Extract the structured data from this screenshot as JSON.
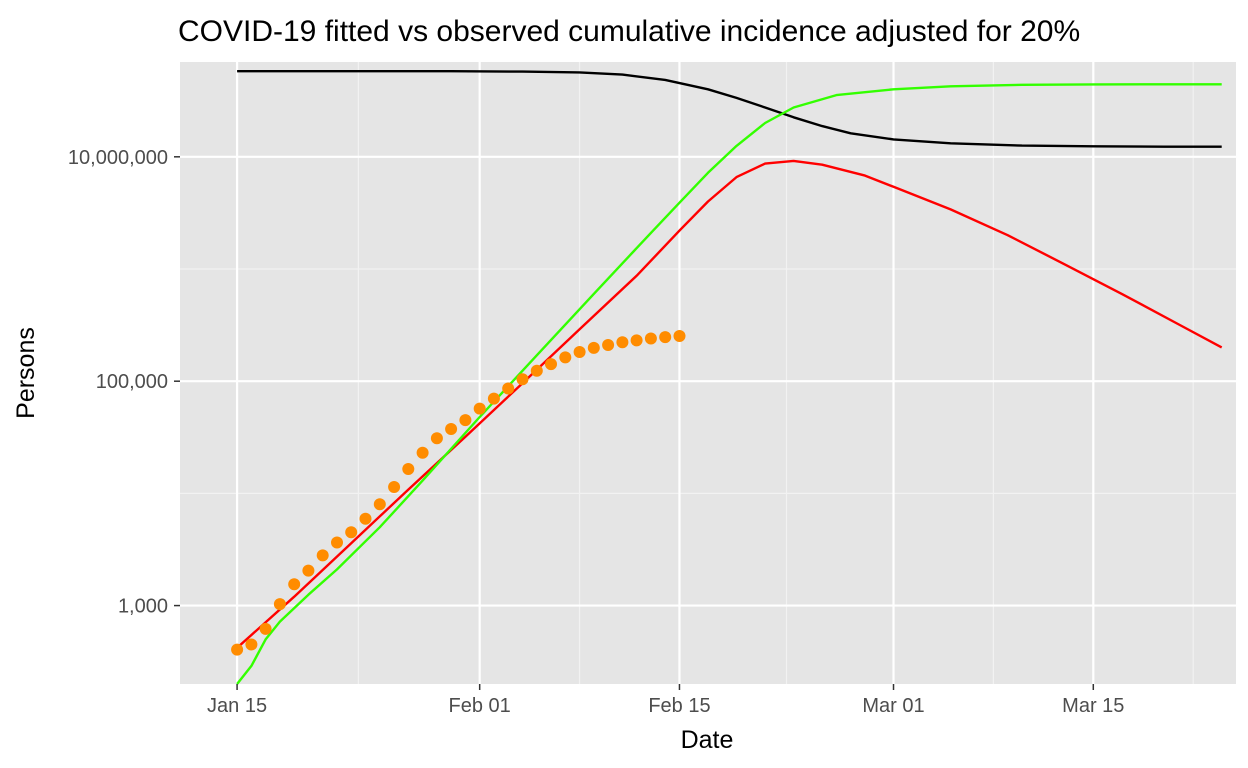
{
  "chart_data": {
    "type": "line",
    "title": "COVID-19 fitted vs observed cumulative incidence adjusted for 20%",
    "xlabel": "Date",
    "ylabel": "Persons",
    "x_scale": "date",
    "y_scale": "log10",
    "xlim": [
      "2020-01-11",
      "2020-03-25"
    ],
    "ylim": [
      200,
      70000000
    ],
    "x_ticks": [
      {
        "date": "2020-01-15",
        "label": "Jan 15"
      },
      {
        "date": "2020-02-01",
        "label": "Feb 01"
      },
      {
        "date": "2020-02-15",
        "label": "Feb 15"
      },
      {
        "date": "2020-03-01",
        "label": "Mar 01"
      },
      {
        "date": "2020-03-15",
        "label": "Mar 15"
      }
    ],
    "y_ticks": [
      {
        "value": 1000,
        "label": "1,000"
      },
      {
        "value": 100000,
        "label": "100,000"
      },
      {
        "value": 10000000,
        "label": "10,000,000"
      }
    ],
    "grid": true,
    "background": "#e5e5e5",
    "series": [
      {
        "color": "#000000",
        "kind": "line",
        "x": [
          "2020-01-15",
          "2020-01-20",
          "2020-01-25",
          "2020-01-30",
          "2020-02-04",
          "2020-02-08",
          "2020-02-11",
          "2020-02-14",
          "2020-02-17",
          "2020-02-19",
          "2020-02-21",
          "2020-02-23",
          "2020-02-25",
          "2020-02-27",
          "2020-03-01",
          "2020-03-05",
          "2020-03-10",
          "2020-03-15",
          "2020-03-20",
          "2020-03-24"
        ],
        "y": [
          58000000,
          58000000,
          58000000,
          57900000,
          57500000,
          56500000,
          54000000,
          48500000,
          40000000,
          33500000,
          27500000,
          22500000,
          18800000,
          16200000,
          14300000,
          13200000,
          12600000,
          12400000,
          12300000,
          12300000
        ]
      },
      {
        "color": "#ff0000",
        "kind": "line",
        "x": [
          "2020-01-15",
          "2020-01-19",
          "2020-01-23",
          "2020-01-27",
          "2020-01-31",
          "2020-02-04",
          "2020-02-08",
          "2020-02-12",
          "2020-02-15",
          "2020-02-17",
          "2020-02-19",
          "2020-02-21",
          "2020-02-23",
          "2020-02-25",
          "2020-02-28",
          "2020-03-01",
          "2020-03-05",
          "2020-03-09",
          "2020-03-13",
          "2020-03-17",
          "2020-03-21",
          "2020-03-24"
        ],
        "y": [
          420,
          1200,
          3600,
          10800,
          32000,
          96000,
          290000,
          870000,
          2200000,
          4000000,
          6600000,
          8700000,
          9200000,
          8500000,
          6800000,
          5400000,
          3400000,
          2000000,
          1100000,
          600000,
          320000,
          200000
        ]
      },
      {
        "color": "#33ff00",
        "kind": "line",
        "x": [
          "2020-01-15",
          "2020-01-16",
          "2020-01-17",
          "2020-01-18",
          "2020-01-20",
          "2020-01-22",
          "2020-01-25",
          "2020-01-28",
          "2020-02-01",
          "2020-02-05",
          "2020-02-09",
          "2020-02-13",
          "2020-02-15",
          "2020-02-17",
          "2020-02-19",
          "2020-02-21",
          "2020-02-23",
          "2020-02-26",
          "2020-03-01",
          "2020-03-05",
          "2020-03-10",
          "2020-03-15",
          "2020-03-20",
          "2020-03-24"
        ],
        "y": [
          200,
          290,
          500,
          720,
          1250,
          2100,
          5000,
          13000,
          48000,
          170000,
          600000,
          2100000,
          3900000,
          7200000,
          12500000,
          20000000,
          27500000,
          35500000,
          40000000,
          42500000,
          43800000,
          44200000,
          44300000,
          44300000
        ]
      },
      {
        "color": "#ff8c00",
        "kind": "points",
        "x": [
          "2020-01-15",
          "2020-01-16",
          "2020-01-17",
          "2020-01-18",
          "2020-01-19",
          "2020-01-20",
          "2020-01-21",
          "2020-01-22",
          "2020-01-23",
          "2020-01-24",
          "2020-01-25",
          "2020-01-26",
          "2020-01-27",
          "2020-01-28",
          "2020-01-29",
          "2020-01-30",
          "2020-01-31",
          "2020-02-01",
          "2020-02-02",
          "2020-02-03",
          "2020-02-04",
          "2020-02-05",
          "2020-02-06",
          "2020-02-07",
          "2020-02-08",
          "2020-02-09",
          "2020-02-10",
          "2020-02-11",
          "2020-02-12",
          "2020-02-13",
          "2020-02-14",
          "2020-02-15"
        ],
        "y": [
          405,
          450,
          620,
          1030,
          1550,
          2050,
          2800,
          3650,
          4500,
          5950,
          8000,
          11400,
          16500,
          23000,
          31000,
          37500,
          45000,
          57000,
          70000,
          86000,
          104000,
          124000,
          142000,
          163000,
          182000,
          198000,
          210000,
          222000,
          231000,
          240000,
          247000,
          253000
        ]
      }
    ]
  }
}
